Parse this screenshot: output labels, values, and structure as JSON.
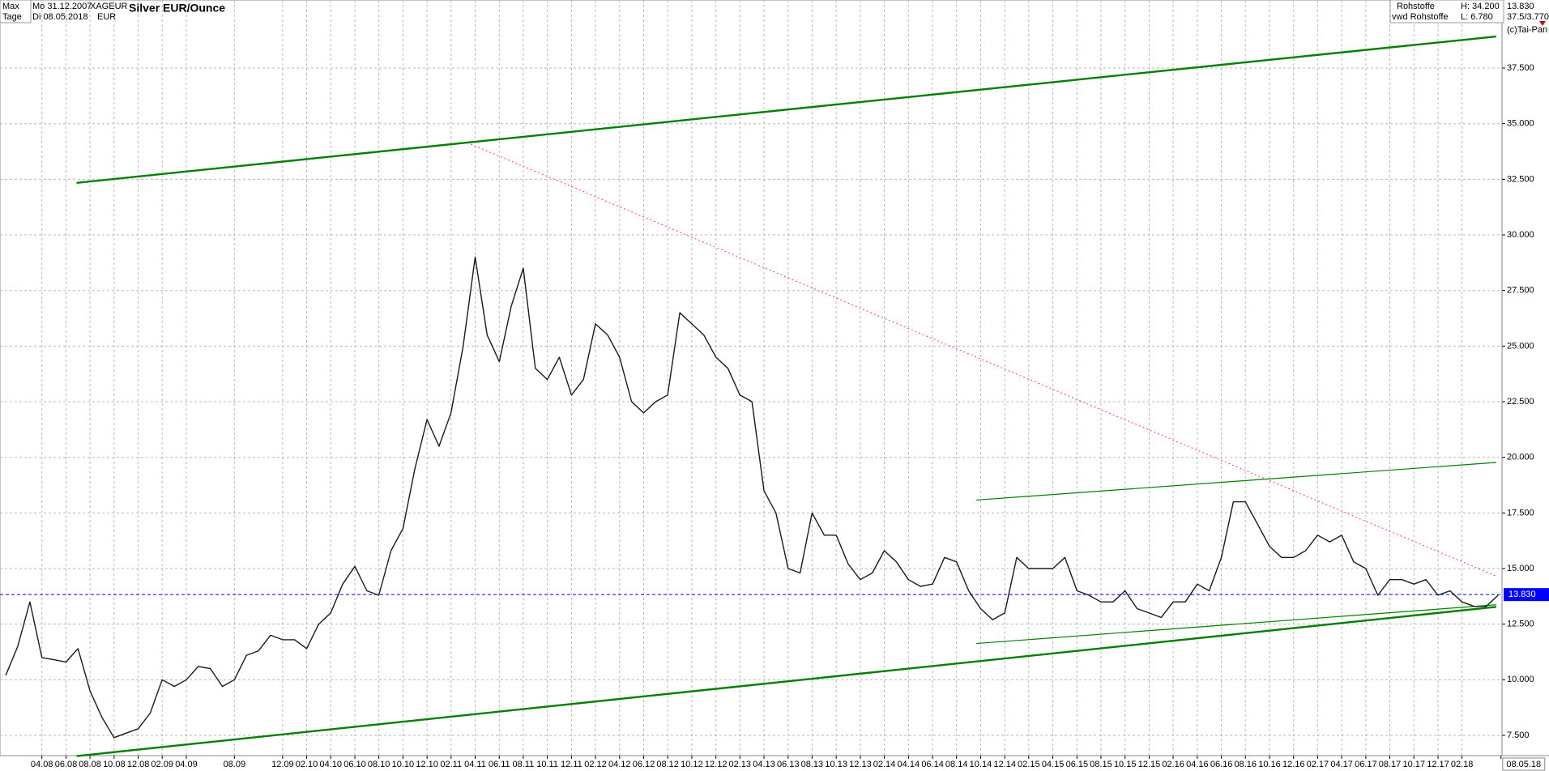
{
  "header": {
    "range": "Max",
    "period": "Tage",
    "from": "Mo 31.12.2007",
    "to": "Di 08.05.2018",
    "symbol": "XAGEUR",
    "currency": "EUR",
    "exchange": "Rohstoffe",
    "source": "vwd Rohstoffe",
    "high": "H: 34.200",
    "low": "L: 6.780",
    "last": "13.830",
    "scale": "37.5/3.770",
    "copyright": "(c)Tai-Pan"
  },
  "chart_data": {
    "type": "line",
    "title": "Silver EUR/Ounce",
    "color": "#1a1a1a",
    "grid": true,
    "x": [
      2008.0,
      2008.083,
      2008.167,
      2008.25,
      2008.333,
      2008.417,
      2008.5,
      2008.583,
      2008.667,
      2008.75,
      2008.833,
      2008.917,
      2009.0,
      2009.083,
      2009.167,
      2009.25,
      2009.333,
      2009.417,
      2009.5,
      2009.583,
      2009.667,
      2009.75,
      2009.833,
      2009.917,
      2010.0,
      2010.083,
      2010.167,
      2010.25,
      2010.333,
      2010.417,
      2010.5,
      2010.583,
      2010.667,
      2010.75,
      2010.833,
      2010.917,
      2011.0,
      2011.083,
      2011.167,
      2011.25,
      2011.333,
      2011.417,
      2011.5,
      2011.583,
      2011.667,
      2011.75,
      2011.833,
      2011.917,
      2012.0,
      2012.083,
      2012.167,
      2012.25,
      2012.333,
      2012.417,
      2012.5,
      2012.583,
      2012.667,
      2012.75,
      2012.833,
      2012.917,
      2013.0,
      2013.083,
      2013.167,
      2013.25,
      2013.333,
      2013.417,
      2013.5,
      2013.583,
      2013.667,
      2013.75,
      2013.833,
      2013.917,
      2014.0,
      2014.083,
      2014.167,
      2014.25,
      2014.333,
      2014.417,
      2014.5,
      2014.583,
      2014.667,
      2014.75,
      2014.833,
      2014.917,
      2015.0,
      2015.083,
      2015.167,
      2015.25,
      2015.333,
      2015.417,
      2015.5,
      2015.583,
      2015.667,
      2015.75,
      2015.833,
      2015.917,
      2016.0,
      2016.083,
      2016.167,
      2016.25,
      2016.333,
      2016.417,
      2016.5,
      2016.583,
      2016.667,
      2016.75,
      2016.833,
      2016.917,
      2017.0,
      2017.083,
      2017.167,
      2017.25,
      2017.333,
      2017.417,
      2017.5,
      2017.583,
      2017.667,
      2017.75,
      2017.833,
      2017.917,
      2018.0,
      2018.083,
      2018.167,
      2018.25,
      2018.333
    ],
    "values": [
      10.2,
      11.5,
      13.5,
      11.0,
      10.9,
      10.8,
      11.4,
      9.5,
      8.3,
      7.4,
      7.6,
      7.8,
      8.5,
      10.0,
      9.7,
      10.0,
      10.6,
      10.5,
      9.7,
      10.0,
      11.1,
      11.3,
      12.0,
      11.8,
      11.8,
      11.4,
      12.5,
      13.0,
      14.3,
      15.1,
      14.0,
      13.8,
      15.8,
      16.8,
      19.5,
      21.7,
      20.5,
      22.0,
      25.0,
      29.0,
      25.5,
      24.3,
      26.8,
      28.5,
      24.0,
      23.5,
      24.5,
      22.8,
      23.5,
      26.0,
      25.5,
      24.5,
      22.5,
      22.0,
      22.5,
      22.8,
      26.5,
      26.0,
      25.5,
      24.5,
      24.0,
      22.8,
      22.5,
      18.5,
      17.5,
      15.0,
      14.8,
      17.5,
      16.5,
      16.5,
      15.2,
      14.5,
      14.8,
      15.8,
      15.3,
      14.5,
      14.2,
      14.3,
      15.5,
      15.3,
      14.0,
      13.2,
      12.7,
      13.0,
      15.5,
      15.0,
      15.0,
      15.0,
      15.5,
      14.0,
      13.8,
      13.5,
      13.5,
      14.0,
      13.2,
      13.0,
      12.8,
      13.5,
      13.5,
      14.3,
      14.0,
      15.5,
      18.0,
      18.0,
      17.0,
      16.0,
      15.5,
      15.5,
      15.8,
      16.5,
      16.2,
      16.5,
      15.3,
      15.0,
      13.8,
      14.5,
      14.5,
      14.3,
      14.5,
      13.8,
      14.0,
      13.5,
      13.3,
      13.3,
      13.8
    ],
    "xlim": [
      2007.96,
      2018.36
    ],
    "ylim": [
      6.59,
      40.56
    ],
    "xticks": [
      {
        "value": 2008.25,
        "label": "04.08"
      },
      {
        "value": 2008.417,
        "label": "06.08"
      },
      {
        "value": 2008.583,
        "label": "08.08"
      },
      {
        "value": 2008.75,
        "label": "10.08"
      },
      {
        "value": 2008.917,
        "label": "12.08"
      },
      {
        "value": 2009.083,
        "label": "02.09"
      },
      {
        "value": 2009.25,
        "label": "04.09"
      },
      {
        "value": 2009.583,
        "label": "08.09"
      },
      {
        "value": 2009.917,
        "label": "12.09"
      },
      {
        "value": 2010.083,
        "label": "02.10"
      },
      {
        "value": 2010.25,
        "label": "04.10"
      },
      {
        "value": 2010.417,
        "label": "06.10"
      },
      {
        "value": 2010.583,
        "label": "08.10"
      },
      {
        "value": 2010.75,
        "label": "10.10"
      },
      {
        "value": 2010.917,
        "label": "12.10"
      },
      {
        "value": 2011.083,
        "label": "02.11"
      },
      {
        "value": 2011.25,
        "label": "04.11"
      },
      {
        "value": 2011.417,
        "label": "06.11"
      },
      {
        "value": 2011.583,
        "label": "08.11"
      },
      {
        "value": 2011.75,
        "label": "10.11"
      },
      {
        "value": 2011.917,
        "label": "12.11"
      },
      {
        "value": 2012.083,
        "label": "02.12"
      },
      {
        "value": 2012.25,
        "label": "04.12"
      },
      {
        "value": 2012.417,
        "label": "06.12"
      },
      {
        "value": 2012.583,
        "label": "08.12"
      },
      {
        "value": 2012.75,
        "label": "10.12"
      },
      {
        "value": 2012.917,
        "label": "12.12"
      },
      {
        "value": 2013.083,
        "label": "02.13"
      },
      {
        "value": 2013.25,
        "label": "04.13"
      },
      {
        "value": 2013.417,
        "label": "06.13"
      },
      {
        "value": 2013.583,
        "label": "08.13"
      },
      {
        "value": 2013.75,
        "label": "10.13"
      },
      {
        "value": 2013.917,
        "label": "12.13"
      },
      {
        "value": 2014.083,
        "label": "02.14"
      },
      {
        "value": 2014.25,
        "label": "04.14"
      },
      {
        "value": 2014.417,
        "label": "06.14"
      },
      {
        "value": 2014.583,
        "label": "08.14"
      },
      {
        "value": 2014.75,
        "label": "10.14"
      },
      {
        "value": 2014.917,
        "label": "12.14"
      },
      {
        "value": 2015.083,
        "label": "02.15"
      },
      {
        "value": 2015.25,
        "label": "04.15"
      },
      {
        "value": 2015.417,
        "label": "06.15"
      },
      {
        "value": 2015.583,
        "label": "08.15"
      },
      {
        "value": 2015.75,
        "label": "10.15"
      },
      {
        "value": 2015.917,
        "label": "12.15"
      },
      {
        "value": 2016.083,
        "label": "02.16"
      },
      {
        "value": 2016.25,
        "label": "04.16"
      },
      {
        "value": 2016.417,
        "label": "06.16"
      },
      {
        "value": 2016.583,
        "label": "08.16"
      },
      {
        "value": 2016.75,
        "label": "10.16"
      },
      {
        "value": 2016.917,
        "label": "12.16"
      },
      {
        "value": 2017.083,
        "label": "02.17"
      },
      {
        "value": 2017.25,
        "label": "04.17"
      },
      {
        "value": 2017.417,
        "label": "06.17"
      },
      {
        "value": 2017.583,
        "label": "08.17"
      },
      {
        "value": 2017.75,
        "label": "10.17"
      },
      {
        "value": 2017.917,
        "label": "12.17"
      },
      {
        "value": 2018.083,
        "label": "02.18"
      },
      {
        "value": 2018.353,
        "label": "08.05.18"
      }
    ],
    "yticks": [
      {
        "value": 7.5,
        "label": "7.500"
      },
      {
        "value": 10,
        "label": "10.000"
      },
      {
        "value": 12.5,
        "label": "12.500"
      },
      {
        "value": 15,
        "label": "15.000"
      },
      {
        "value": 17.5,
        "label": "17.500"
      },
      {
        "value": 20,
        "label": "20.000"
      },
      {
        "value": 22.5,
        "label": "22.500"
      },
      {
        "value": 25,
        "label": "25.000"
      },
      {
        "value": 27.5,
        "label": "27.500"
      },
      {
        "value": 30,
        "label": "30.000"
      },
      {
        "value": 32.5,
        "label": "32.500"
      },
      {
        "value": 35,
        "label": "35.000"
      },
      {
        "value": 37.5,
        "label": "37.500"
      }
    ],
    "trendlines": [
      {
        "color": "#008000",
        "width": 2.4,
        "dash": false,
        "x": [
          2008.49,
          2018.32
        ],
        "y": [
          32.34,
          38.92
        ]
      },
      {
        "color": "#008000",
        "width": 2.4,
        "dash": false,
        "x": [
          2008.49,
          2018.32
        ],
        "y": [
          6.57,
          13.28
        ]
      },
      {
        "color": "#008000",
        "width": 1.2,
        "dash": false,
        "x": [
          2014.72,
          2018.32
        ],
        "y": [
          18.08,
          19.77
        ]
      },
      {
        "color": "#008000",
        "width": 1.2,
        "dash": false,
        "x": [
          2014.72,
          2018.32
        ],
        "y": [
          11.63,
          13.37
        ]
      },
      {
        "color": "#ff4040",
        "width": 1,
        "dash": true,
        "x": [
          2011.22,
          2018.32
        ],
        "y": [
          34.08,
          14.66
        ]
      }
    ],
    "reference_line": {
      "value": 13.83,
      "label": "13.830",
      "color": "#0000ff"
    }
  }
}
